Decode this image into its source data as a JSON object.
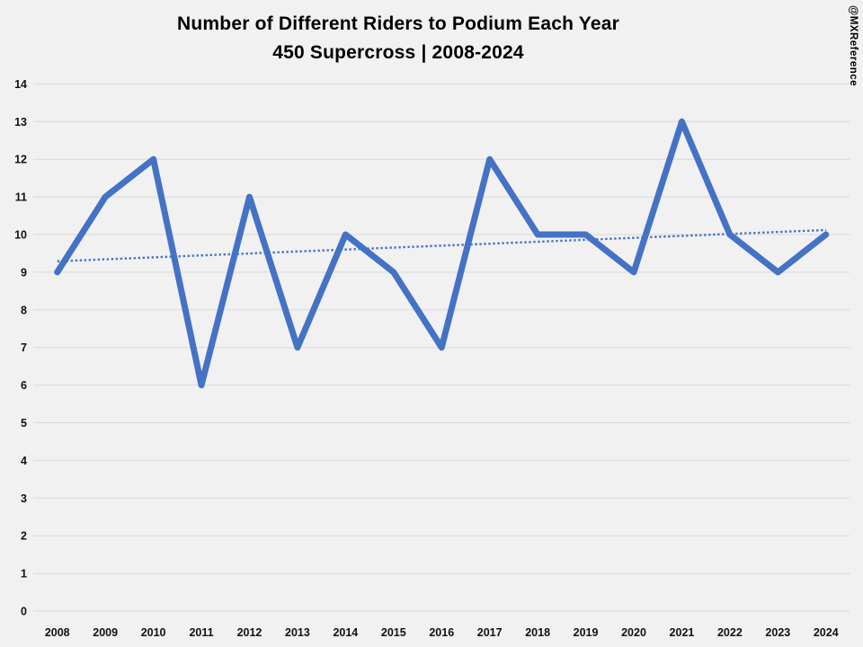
{
  "title": {
    "line1": "Number of Different Riders to Podium Each Year",
    "line2": "450 Supercross | 2008-2024"
  },
  "watermark": "@MXReference",
  "chart_data": {
    "type": "line",
    "categories": [
      "2008",
      "2009",
      "2010",
      "2011",
      "2012",
      "2013",
      "2014",
      "2015",
      "2016",
      "2017",
      "2018",
      "2019",
      "2020",
      "2021",
      "2022",
      "2023",
      "2024"
    ],
    "series": [
      {
        "name": "Different riders to podium",
        "values": [
          9,
          11,
          12,
          6,
          11,
          7,
          10,
          9,
          7,
          12,
          10,
          10,
          9,
          13,
          10,
          9,
          10
        ]
      }
    ],
    "trendline": {
      "style": "dotted",
      "start_value": 9.29,
      "end_value": 10.12
    },
    "title": "Number of Different Riders to Podium Each Year",
    "subtitle": "450 Supercross | 2008-2024",
    "xlabel": "",
    "ylabel": "",
    "ylim": [
      0,
      14
    ],
    "ytick_step": 1,
    "grid": true,
    "legend": "none",
    "colors": {
      "line": "#4472C4",
      "trendline": "#4472C4",
      "gridline": "#d9d9d9",
      "background": "#f1f1f2",
      "label_text": "#111111",
      "title_text": "#000000"
    }
  }
}
